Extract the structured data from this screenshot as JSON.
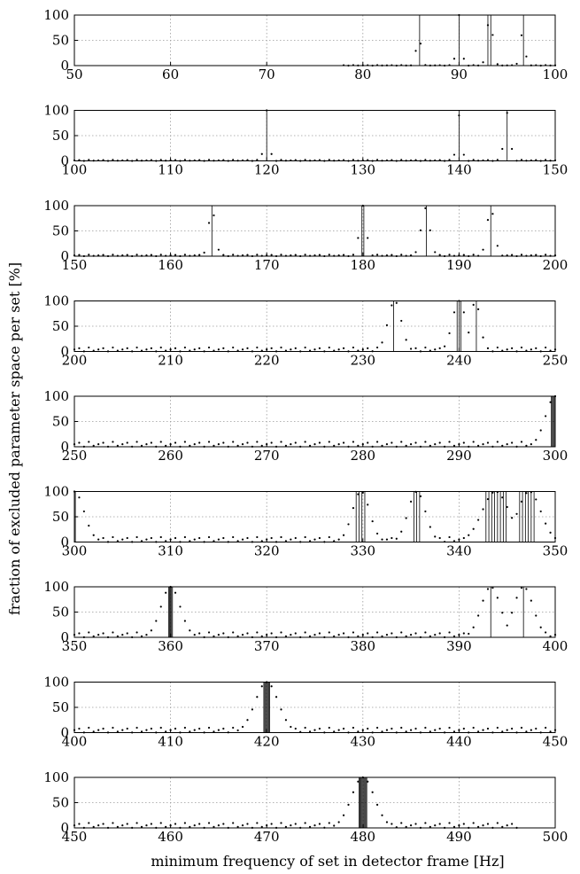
{
  "figure": {
    "xlabel": "minimum frequency of set in detector frame [Hz]",
    "ylabel": "fraction of excluded parameter space per set [%]"
  },
  "chart_data": [
    {
      "type": "scatter",
      "xlim": [
        50,
        100
      ],
      "ylim": [
        0,
        100
      ],
      "xticks": [
        50,
        60,
        70,
        80,
        90,
        100
      ],
      "yticks": [
        0,
        50,
        100
      ],
      "grid": true,
      "baseline_start": 78,
      "floor": 1,
      "peaks": [
        {
          "center": 85.8,
          "width": 0.25,
          "height": 60
        },
        {
          "center": 90.0,
          "width": 0.25,
          "height": 100
        },
        {
          "center": 93.2,
          "width": 0.3,
          "height": 100
        },
        {
          "center": 96.6,
          "width": 0.25,
          "height": 65
        }
      ],
      "vlines": [
        85.9,
        90.0,
        93.0,
        93.3,
        96.7
      ]
    },
    {
      "type": "scatter",
      "xlim": [
        100,
        150
      ],
      "ylim": [
        0,
        100
      ],
      "xticks": [
        100,
        110,
        120,
        130,
        140,
        150
      ],
      "yticks": [
        0,
        50,
        100
      ],
      "grid": true,
      "baseline_start": 100,
      "floor": 2,
      "peaks": [
        {
          "center": 120.0,
          "width": 0.25,
          "height": 100
        },
        {
          "center": 140.0,
          "width": 0.25,
          "height": 90
        },
        {
          "center": 145.0,
          "width": 0.3,
          "height": 95
        }
      ],
      "vlines": [
        120.0,
        140.0,
        145.0
      ]
    },
    {
      "type": "scatter",
      "xlim": [
        150,
        200
      ],
      "ylim": [
        0,
        100
      ],
      "xticks": [
        150,
        160,
        170,
        180,
        190,
        200
      ],
      "yticks": [
        0,
        50,
        100
      ],
      "grid": true,
      "baseline_start": 150,
      "floor": 3,
      "peaks": [
        {
          "center": 164.3,
          "width": 0.35,
          "height": 95
        },
        {
          "center": 180.0,
          "width": 0.35,
          "height": 100
        },
        {
          "center": 186.5,
          "width": 0.45,
          "height": 95
        },
        {
          "center": 193.3,
          "width": 0.4,
          "height": 95
        }
      ],
      "vlines": [
        164.3,
        179.9,
        180.1,
        186.6,
        193.3
      ]
    },
    {
      "type": "scatter",
      "xlim": [
        200,
        250
      ],
      "ylim": [
        0,
        100
      ],
      "xticks": [
        200,
        210,
        220,
        230,
        240,
        250
      ],
      "yticks": [
        0,
        50,
        100
      ],
      "grid": true,
      "baseline_start": 200,
      "floor": 8,
      "peaks": [
        {
          "center": 233.3,
          "width": 0.7,
          "height": 100
        },
        {
          "center": 240.0,
          "width": 0.7,
          "height": 100
        },
        {
          "center": 241.7,
          "width": 0.5,
          "height": 100
        }
      ],
      "vlines": [
        233.2,
        239.8,
        240.0,
        240.2,
        241.8
      ]
    },
    {
      "type": "scatter",
      "xlim": [
        250,
        300
      ],
      "ylim": [
        0,
        100
      ],
      "xticks": [
        250,
        260,
        270,
        280,
        290,
        300
      ],
      "yticks": [
        0,
        50,
        100
      ],
      "grid": true,
      "baseline_start": 250,
      "floor": 10,
      "peaks": [
        {
          "center": 300.0,
          "width": 1.0,
          "height": 100
        }
      ],
      "vlines": [
        299.6,
        299.7,
        299.8,
        299.9,
        300.0
      ]
    },
    {
      "type": "scatter",
      "xlim": [
        300,
        350
      ],
      "ylim": [
        0,
        100
      ],
      "xticks": [
        300,
        310,
        320,
        330,
        340,
        350
      ],
      "yticks": [
        0,
        50,
        100
      ],
      "grid": true,
      "baseline_start": 300,
      "floor": 10,
      "peaks": [
        {
          "center": 300.0,
          "width": 1.0,
          "height": 100
        },
        {
          "center": 329.8,
          "width": 0.9,
          "height": 100
        },
        {
          "center": 335.6,
          "width": 0.9,
          "height": 100
        },
        {
          "center": 343.8,
          "width": 1.4,
          "height": 100
        },
        {
          "center": 347.3,
          "width": 1.2,
          "height": 100
        }
      ],
      "vlines": [
        300.1,
        329.3,
        329.6,
        329.9,
        330.2,
        335.3,
        335.6,
        335.9,
        342.8,
        343.1,
        343.4,
        343.7,
        344.0,
        344.3,
        344.6,
        344.9,
        346.3,
        346.6,
        346.9,
        347.2,
        347.5,
        347.8
      ]
    },
    {
      "type": "scatter",
      "xlim": [
        350,
        400
      ],
      "ylim": [
        0,
        100
      ],
      "xticks": [
        350,
        360,
        370,
        380,
        390,
        400
      ],
      "yticks": [
        0,
        50,
        100
      ],
      "grid": true,
      "baseline_start": 350,
      "floor": 10,
      "peaks": [
        {
          "center": 360.0,
          "width": 1.0,
          "height": 100
        },
        {
          "center": 393.3,
          "width": 1.0,
          "height": 100
        },
        {
          "center": 396.7,
          "width": 1.0,
          "height": 100
        }
      ],
      "vlines": [
        359.8,
        359.9,
        360.0,
        360.1,
        360.2,
        393.3,
        396.7
      ]
    },
    {
      "type": "scatter",
      "xlim": [
        400,
        450
      ],
      "ylim": [
        0,
        100
      ],
      "xticks": [
        400,
        410,
        420,
        430,
        440,
        450
      ],
      "yticks": [
        0,
        50,
        100
      ],
      "grid": true,
      "baseline_start": 400,
      "floor": 10,
      "peaks": [
        {
          "center": 420.0,
          "width": 1.2,
          "height": 100
        }
      ],
      "vlines": [
        419.7,
        419.8,
        419.9,
        420.0,
        420.1,
        420.2,
        420.3
      ]
    },
    {
      "type": "scatter",
      "xlim": [
        450,
        500
      ],
      "ylim": [
        0,
        100
      ],
      "xticks": [
        450,
        460,
        470,
        480,
        490,
        500
      ],
      "yticks": [
        0,
        50,
        100
      ],
      "grid": true,
      "baseline_start": 450,
      "baseline_end": 496,
      "floor": 10,
      "peaks": [
        {
          "center": 480.0,
          "width": 1.2,
          "height": 100
        }
      ],
      "vlines": [
        479.6,
        479.7,
        479.8,
        479.9,
        480.0,
        480.1,
        480.2,
        480.3,
        480.4
      ]
    }
  ]
}
